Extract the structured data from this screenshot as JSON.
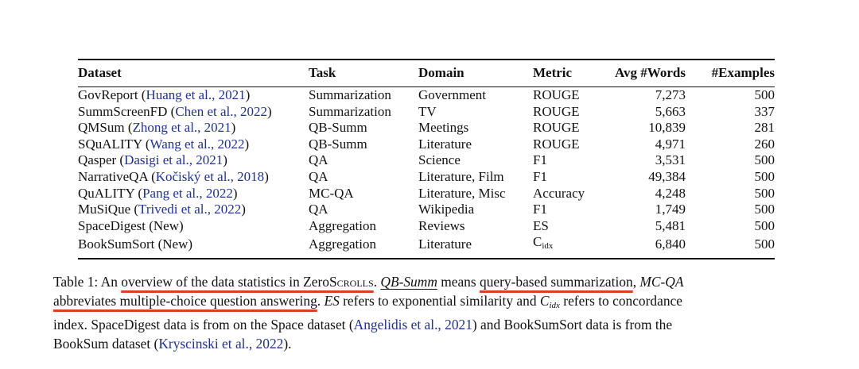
{
  "table": {
    "headers": [
      "Dataset",
      "Task",
      "Domain",
      "Metric",
      "Avg #Words",
      "#Examples"
    ],
    "rows": [
      {
        "dataset": "GovReport",
        "cite": "Huang et al., 2021",
        "task": "Summarization",
        "domain": "Government",
        "metric": "ROUGE",
        "avg_words": "7,273",
        "examples": "500"
      },
      {
        "dataset": "SummScreenFD",
        "cite": "Chen et al., 2022",
        "task": "Summarization",
        "domain": "TV",
        "metric": "ROUGE",
        "avg_words": "5,663",
        "examples": "337"
      },
      {
        "dataset": "QMSum",
        "cite": "Zhong et al., 2021",
        "task": "QB-Summ",
        "domain": "Meetings",
        "metric": "ROUGE",
        "avg_words": "10,839",
        "examples": "281"
      },
      {
        "dataset": "SQuALITY",
        "cite": "Wang et al., 2022",
        "task": "QB-Summ",
        "domain": "Literature",
        "metric": "ROUGE",
        "avg_words": "4,971",
        "examples": "260"
      },
      {
        "dataset": "Qasper",
        "cite": "Dasigi et al., 2021",
        "task": "QA",
        "domain": "Science",
        "metric": "F1",
        "avg_words": "3,531",
        "examples": "500"
      },
      {
        "dataset": "NarrativeQA",
        "cite": "Kočiský et al., 2018",
        "task": "QA",
        "domain": "Literature, Film",
        "metric": "F1",
        "avg_words": "49,384",
        "examples": "500"
      },
      {
        "dataset": "QuALITY",
        "cite": "Pang et al., 2022",
        "task": "MC-QA",
        "domain": "Literature, Misc",
        "metric": "Accuracy",
        "avg_words": "4,248",
        "examples": "500"
      },
      {
        "dataset": "MuSiQue",
        "cite": "Trivedi et al., 2022",
        "task": "QA",
        "domain": "Wikipedia",
        "metric": "F1",
        "avg_words": "1,749",
        "examples": "500"
      },
      {
        "dataset": "SpaceDigest",
        "note": "(New)",
        "task": "Aggregation",
        "domain": "Reviews",
        "metric": "ES",
        "avg_words": "5,481",
        "examples": "500"
      },
      {
        "dataset": "BookSumSort",
        "note": "(New)",
        "task": "Aggregation",
        "domain": "Literature",
        "metric": "C",
        "metric_sub": "idx",
        "avg_words": "6,840",
        "examples": "500"
      }
    ]
  },
  "caption": {
    "label": "Table 1:",
    "p1": "An ",
    "hl1": "overview of the data statistics in Zero",
    "sc": "Scrolls",
    "p2": ". ",
    "qb_term": "QB-Summ",
    "p3": " means ",
    "hl2": "query-based summarization",
    "p4": ", ",
    "mc_term": "MC-QA",
    "hl3": "abbreviates multiple-choice question answering",
    "p5": ". ",
    "es_term": "ES",
    "p6": " refers to exponential similarity and ",
    "c_term": "C",
    "c_sub": "idx",
    "p7": " refers to concordance",
    "line3a": "index. SpaceDigest data is from on the Space dataset (",
    "cite_a": "Angelidis et al., 2021",
    "line3b": ") and BookSumSort data is from the",
    "line4a": "BookSum dataset (",
    "cite_b": "Kryscinski et al., 2022",
    "line4b": ")."
  },
  "colors": {
    "citation": "#1f2f9e",
    "highlight": "#e03c22"
  }
}
